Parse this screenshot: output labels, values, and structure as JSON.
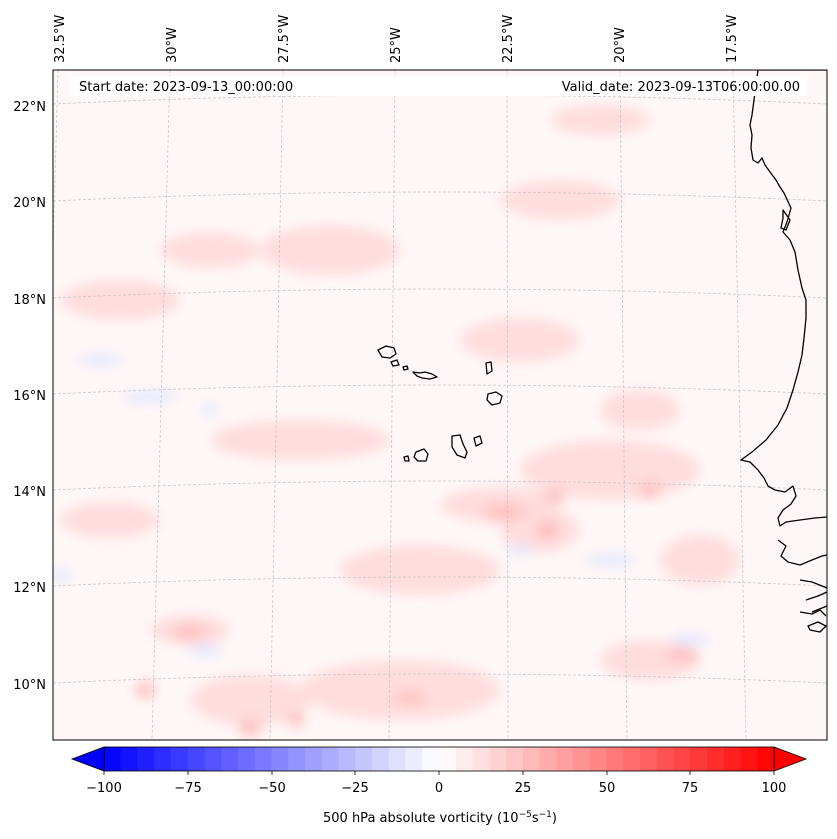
{
  "header": {
    "start_date": "Start date: 2023-09-13_00:00:00",
    "valid_date": "Valid_date: 2023-09-13T06:00:00.00"
  },
  "axes": {
    "lon_labels": [
      "32.5°W",
      "30°W",
      "27.5°W",
      "25°W",
      "22.5°W",
      "20°W",
      "17.5°W"
    ],
    "lat_labels": [
      "22°N",
      "20°N",
      "18°N",
      "16°N",
      "14°N",
      "12°N",
      "10°N"
    ]
  },
  "colorbar": {
    "ticks": [
      "−100",
      "−75",
      "−50",
      "−25",
      "0",
      "25",
      "50",
      "75",
      "100"
    ],
    "label_main": "500 hPa absolute vorticity (10",
    "label_exp1": "−5",
    "label_mid": "s",
    "label_exp2": "−1",
    "label_end": ")",
    "vmin": -100,
    "vmax": 100,
    "min_color": "#0000ff",
    "mid_color": "#ffffff",
    "max_color": "#ff0000"
  },
  "colors": {
    "background_field": "#fff6f6",
    "positive_anomaly": "#ffd6d6",
    "negative_anomaly": "#e6e8ff",
    "coastline": "#000000",
    "gridline": "#c8c8c8"
  }
}
